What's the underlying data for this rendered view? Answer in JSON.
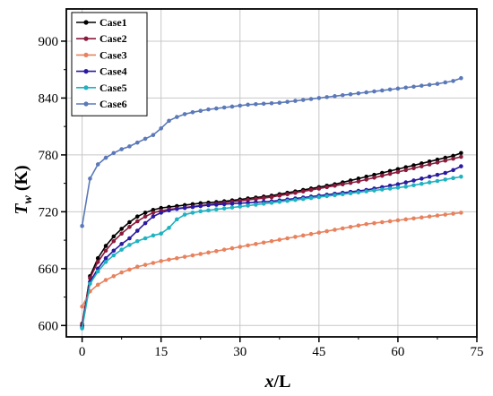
{
  "chart_data": {
    "type": "line",
    "xlabel_main": "x",
    "xlabel_sep": "/L",
    "ylabel_main": "T",
    "ylabel_sub": "w",
    "ylabel_unit": " (K)",
    "xlim": [
      -3,
      75
    ],
    "ylim": [
      588,
      934
    ],
    "xticks": [
      0,
      15,
      30,
      45,
      60,
      75
    ],
    "yticks": [
      600,
      660,
      720,
      780,
      840,
      900
    ],
    "grid": true,
    "legend_position": "top-left",
    "x": [
      0,
      1.5,
      3,
      4.5,
      6,
      7.5,
      9,
      10.5,
      12,
      13.5,
      15,
      16.5,
      18,
      19.5,
      21,
      22.5,
      24,
      25.5,
      27,
      28.5,
      30,
      31.5,
      33,
      34.5,
      36,
      37.5,
      39,
      40.5,
      42,
      43.5,
      45,
      46.5,
      48,
      49.5,
      51,
      52.5,
      54,
      55.5,
      57,
      58.5,
      60,
      61.5,
      63,
      64.5,
      66,
      67.5,
      69,
      70.5,
      72
    ],
    "series": [
      {
        "name": "Case1",
        "color": "#000000",
        "values": [
          600,
          652,
          671,
          684,
          694,
          702,
          709,
          715,
          719,
          722,
          724,
          725,
          726,
          727,
          728,
          729,
          729.6,
          730.2,
          731,
          732,
          733,
          734,
          735,
          736,
          737,
          738.5,
          740,
          741.5,
          743,
          744.5,
          746,
          747.5,
          749,
          751,
          753,
          755,
          757,
          759,
          761,
          763,
          765,
          767,
          769,
          771,
          773,
          775,
          777,
          779,
          782
        ]
      },
      {
        "name": "Case2",
        "color": "#8b1a3c",
        "values": [
          602,
          650,
          667,
          679,
          689,
          697,
          704,
          710,
          715,
          719,
          721,
          722.5,
          723.5,
          724.5,
          725.5,
          726.5,
          727.5,
          728.5,
          729.5,
          730.5,
          731.5,
          732.5,
          733.5,
          734.5,
          735.5,
          737,
          738.5,
          740,
          741.5,
          743,
          744.5,
          746,
          747.5,
          749,
          750.5,
          752,
          754,
          756,
          758,
          760,
          762,
          764,
          766,
          768,
          770,
          772,
          774,
          776,
          778
        ]
      },
      {
        "name": "Case3",
        "color": "#e8825e",
        "values": [
          620,
          636,
          643,
          648,
          652,
          656,
          659,
          662,
          664,
          666,
          668,
          669.5,
          671,
          672.5,
          674,
          675.5,
          677,
          678.5,
          680,
          681.5,
          683,
          684.5,
          686,
          687.5,
          689,
          690.5,
          692,
          693.5,
          695,
          696.5,
          698,
          699.5,
          701,
          702.5,
          704,
          705.5,
          707,
          708,
          709,
          710,
          711,
          712,
          713,
          714,
          715,
          716,
          717,
          718,
          719
        ]
      },
      {
        "name": "Case4",
        "color": "#2a1aa0",
        "values": [
          598,
          646,
          660,
          671,
          679,
          686,
          692,
          700,
          708,
          715,
          719,
          721.5,
          723,
          724,
          725,
          726,
          727,
          727.5,
          728,
          728.5,
          729,
          729.5,
          730,
          730.5,
          731,
          732,
          733,
          734,
          735,
          736,
          737,
          738,
          739,
          740,
          741,
          742,
          743,
          744.5,
          746,
          747.5,
          749,
          751,
          753,
          755,
          757,
          759,
          761,
          764,
          768
        ]
      },
      {
        "name": "Case5",
        "color": "#20b2c0",
        "values": [
          597,
          644,
          657,
          667,
          674,
          680,
          685,
          689,
          692,
          695,
          697,
          703,
          712,
          717,
          719,
          720.5,
          721.5,
          722.5,
          723.5,
          724.5,
          725.5,
          726.5,
          727.5,
          728.5,
          729.5,
          730.5,
          731.5,
          732.5,
          733.5,
          734.5,
          735.5,
          736.5,
          737.5,
          738.5,
          739.5,
          740.5,
          741.5,
          742.5,
          743.5,
          744.5,
          745.5,
          746.5,
          748,
          749.5,
          751,
          752.5,
          754,
          755.5,
          757
        ]
      },
      {
        "name": "Case6",
        "color": "#5b79b8",
        "values": [
          705,
          755,
          770,
          777,
          782,
          786,
          789,
          793,
          797,
          801,
          808,
          816,
          820,
          823,
          825,
          826.5,
          828,
          829,
          830,
          831,
          832,
          833,
          833.5,
          834,
          834.5,
          835,
          836,
          837,
          838,
          839,
          840,
          841,
          842,
          843,
          844,
          845,
          846,
          847,
          848,
          849,
          850,
          851,
          852,
          853,
          854,
          855,
          856.5,
          858,
          861
        ]
      }
    ]
  }
}
